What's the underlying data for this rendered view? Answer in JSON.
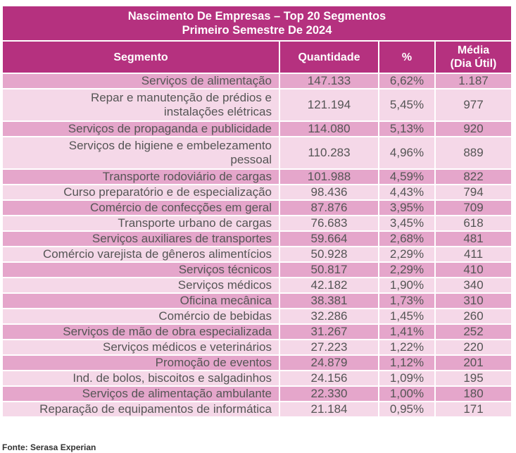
{
  "table": {
    "title_line1": "Nascimento De Empresas – Top 20 Segmentos",
    "title_line2": "Primeiro Semestre De 2024",
    "headers": {
      "segment": "Segmento",
      "quantity": "Quantidade",
      "percent": "%",
      "avg_line1": "Média",
      "avg_line2": "(Dia Útil)"
    },
    "rows": [
      {
        "segment_line1": "Serviços de alimentação",
        "segment_line2": "",
        "quantity": "147.133",
        "percent": "6,62%",
        "avg": "1.187"
      },
      {
        "segment_line1": "Repar e manutenção de prédios e",
        "segment_line2": "instalações elétricas",
        "quantity": "121.194",
        "percent": "5,45%",
        "avg": "977"
      },
      {
        "segment_line1": "Serviços de propaganda e publicidade",
        "segment_line2": "",
        "quantity": "114.080",
        "percent": "5,13%",
        "avg": "920"
      },
      {
        "segment_line1": "Serviços de higiene e embelezamento",
        "segment_line2": "pessoal",
        "quantity": "110.283",
        "percent": "4,96%",
        "avg": "889"
      },
      {
        "segment_line1": "Transporte rodoviário de cargas",
        "segment_line2": "",
        "quantity": "101.988",
        "percent": "4,59%",
        "avg": "822"
      },
      {
        "segment_line1": "Curso preparatório e de especialização",
        "segment_line2": "",
        "quantity": "98.436",
        "percent": "4,43%",
        "avg": "794"
      },
      {
        "segment_line1": "Comércio de confecções em geral",
        "segment_line2": "",
        "quantity": "87.876",
        "percent": "3,95%",
        "avg": "709"
      },
      {
        "segment_line1": "Transporte urbano de cargas",
        "segment_line2": "",
        "quantity": "76.683",
        "percent": "3,45%",
        "avg": "618"
      },
      {
        "segment_line1": "Serviços auxiliares de transportes",
        "segment_line2": "",
        "quantity": "59.664",
        "percent": "2,68%",
        "avg": "481"
      },
      {
        "segment_line1": "Comércio varejista de gêneros alimentícios",
        "segment_line2": "",
        "quantity": "50.928",
        "percent": "2,29%",
        "avg": "411"
      },
      {
        "segment_line1": "Serviços técnicos",
        "segment_line2": "",
        "quantity": "50.817",
        "percent": "2,29%",
        "avg": "410"
      },
      {
        "segment_line1": "Serviços médicos",
        "segment_line2": "",
        "quantity": "42.182",
        "percent": "1,90%",
        "avg": "340"
      },
      {
        "segment_line1": "Oficina mecânica",
        "segment_line2": "",
        "quantity": "38.381",
        "percent": "1,73%",
        "avg": "310"
      },
      {
        "segment_line1": "Comércio de bebidas",
        "segment_line2": "",
        "quantity": "32.286",
        "percent": "1,45%",
        "avg": "260"
      },
      {
        "segment_line1": "Serviços de mão de obra especializada",
        "segment_line2": "",
        "quantity": "31.267",
        "percent": "1,41%",
        "avg": "252"
      },
      {
        "segment_line1": "Serviços médicos e veterinários",
        "segment_line2": "",
        "quantity": "27.223",
        "percent": "1,22%",
        "avg": "220"
      },
      {
        "segment_line1": "Promoção de eventos",
        "segment_line2": "",
        "quantity": "24.879",
        "percent": "1,12%",
        "avg": "201"
      },
      {
        "segment_line1": "Ind. de bolos, biscoitos e salgadinhos",
        "segment_line2": "",
        "quantity": "24.156",
        "percent": "1,09%",
        "avg": "195"
      },
      {
        "segment_line1": "Serviços de alimentação ambulante",
        "segment_line2": "",
        "quantity": "22.330",
        "percent": "1,00%",
        "avg": "180"
      },
      {
        "segment_line1": "Reparação de equipamentos de informática",
        "segment_line2": "",
        "quantity": "21.184",
        "percent": "0,95%",
        "avg": "171"
      }
    ],
    "source": "Fonte: Serasa Experian"
  },
  "colors": {
    "header": "#b5317f",
    "row_dark": "#e5a6cb",
    "row_light": "#f5d8e8",
    "text": "#555555"
  }
}
